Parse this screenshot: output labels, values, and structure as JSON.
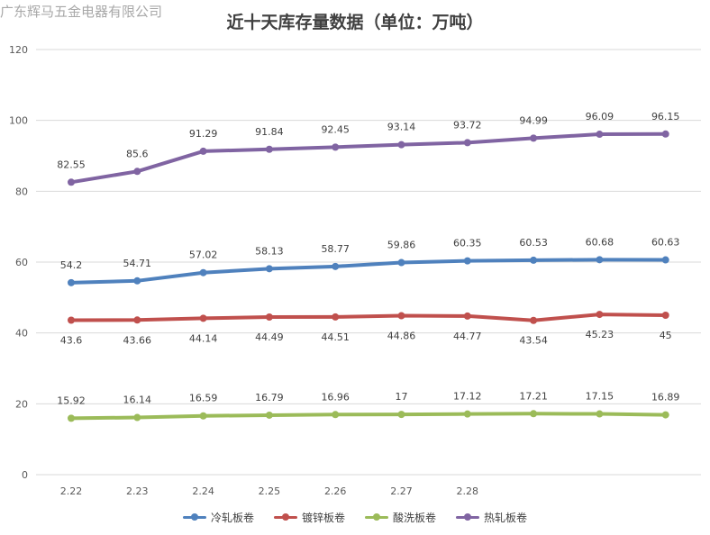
{
  "watermark": "广东辉马五金电器有限公司",
  "colors": {
    "cold_rolled": "#4F81BD",
    "galvanized": "#C0504D",
    "pickled": "#9BBB59",
    "hot_rolled": "#8064A2",
    "grid": "#d9d9d9",
    "text": "#595959"
  },
  "chart_data": {
    "type": "line",
    "title": "近十天库存量数据（单位：万吨）",
    "xlabel": "",
    "ylabel": "",
    "ylim": [
      0,
      120
    ],
    "yticks": [
      0,
      20,
      40,
      60,
      80,
      100,
      120
    ],
    "grid": true,
    "legend_position": "bottom",
    "categories": [
      "2.22",
      "2.23",
      "2.24",
      "2.25",
      "2.26",
      "2.27",
      "2.28",
      "",
      "",
      ""
    ],
    "series": [
      {
        "name": "冷轧板卷",
        "color": "#4F81BD",
        "values": [
          54.2,
          54.71,
          57.02,
          58.13,
          58.77,
          59.86,
          60.35,
          60.53,
          60.68,
          60.63
        ],
        "label_position": "above"
      },
      {
        "name": "镀锌板卷",
        "color": "#C0504D",
        "values": [
          43.6,
          43.66,
          44.14,
          44.49,
          44.51,
          44.86,
          44.77,
          43.54,
          45.23,
          45
        ],
        "label_position": "below"
      },
      {
        "name": "酸洗板卷",
        "color": "#9BBB59",
        "values": [
          15.92,
          16.14,
          16.59,
          16.79,
          16.96,
          17,
          17.12,
          17.21,
          17.15,
          16.89
        ],
        "label_position": "above"
      },
      {
        "name": "热轧板卷",
        "color": "#8064A2",
        "values": [
          82.55,
          85.6,
          91.29,
          91.84,
          92.45,
          93.14,
          93.72,
          94.99,
          96.09,
          96.15
        ],
        "label_position": "above"
      }
    ]
  }
}
